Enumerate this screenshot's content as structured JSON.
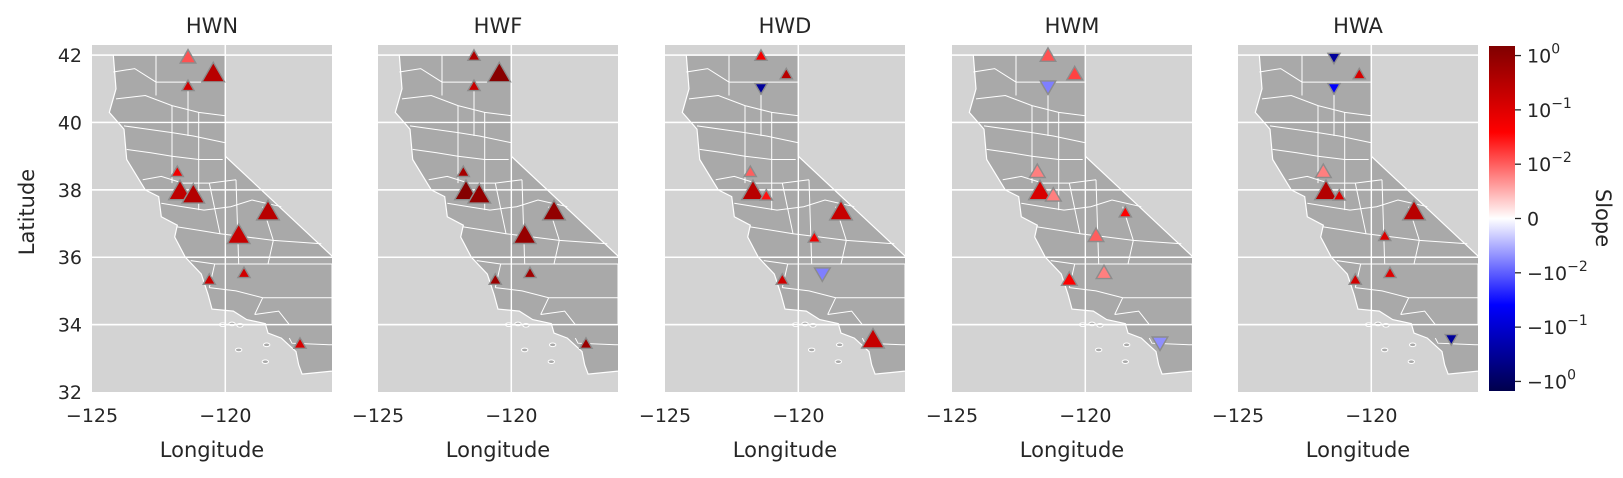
{
  "chart_data": {
    "type": "scatter",
    "subtype": "multi-panel map scatter of California stations",
    "x_axis": {
      "label": "Longitude",
      "range": [
        -125,
        -116.0
      ],
      "ticks": [
        -125,
        -120
      ],
      "tick_labels": [
        "−125",
        "−120"
      ]
    },
    "y_axis": {
      "label": "Latitude",
      "range": [
        32,
        42.3
      ],
      "ticks": [
        32,
        34,
        36,
        38,
        40,
        42
      ],
      "tick_labels": [
        "32",
        "34",
        "36",
        "38",
        "40",
        "42"
      ]
    },
    "grid": true,
    "background": "California county map (gray) on light gray axes",
    "marker_legend": "triangle-up = positive slope, triangle-down = negative slope; marker color = slope (symlog color scale)",
    "colorbar": {
      "label": "Slope",
      "scale": "symlog",
      "range": [
        -1.5,
        1.5
      ],
      "ticks": [
        {
          "value": 1,
          "label": "10",
          "exp": "0"
        },
        {
          "value": 0.1,
          "label": "10",
          "exp": "−1"
        },
        {
          "value": 0.01,
          "label": "10",
          "exp": "−2"
        },
        {
          "value": 0,
          "label": "0",
          "exp": ""
        },
        {
          "value": -0.01,
          "label": "−10",
          "exp": "−2"
        },
        {
          "value": -0.1,
          "label": "−10",
          "exp": "−1"
        },
        {
          "value": -1,
          "label": "−10",
          "exp": "0"
        }
      ],
      "colormap": "seismic"
    },
    "panels": [
      {
        "title": "HWN",
        "points": [
          {
            "lon": -121.4,
            "lat": 41.9,
            "slope": 0.012,
            "size": "md"
          },
          {
            "lon": -121.4,
            "lat": 41.05,
            "slope": 0.15,
            "size": "sm"
          },
          {
            "lon": -120.45,
            "lat": 41.4,
            "slope": 0.3,
            "size": "lg"
          },
          {
            "lon": -121.8,
            "lat": 38.5,
            "slope": 0.06,
            "size": "sm"
          },
          {
            "lon": -121.7,
            "lat": 37.9,
            "slope": 0.25,
            "size": "lg"
          },
          {
            "lon": -121.2,
            "lat": 37.8,
            "slope": 0.35,
            "size": "lg"
          },
          {
            "lon": -118.4,
            "lat": 37.3,
            "slope": 0.3,
            "size": "lg"
          },
          {
            "lon": -119.5,
            "lat": 36.6,
            "slope": 0.2,
            "size": "lg"
          },
          {
            "lon": -120.6,
            "lat": 35.3,
            "slope": 0.18,
            "size": "sm"
          },
          {
            "lon": -119.3,
            "lat": 35.5,
            "slope": 0.15,
            "size": "sm"
          },
          {
            "lon": -117.2,
            "lat": 33.4,
            "slope": 0.12,
            "size": "sm"
          }
        ]
      },
      {
        "title": "HWF",
        "points": [
          {
            "lon": -121.4,
            "lat": 41.95,
            "slope": 0.4,
            "size": "sm"
          },
          {
            "lon": -121.4,
            "lat": 41.05,
            "slope": 0.2,
            "size": "sm"
          },
          {
            "lon": -120.45,
            "lat": 41.4,
            "slope": 1.2,
            "size": "lg"
          },
          {
            "lon": -121.8,
            "lat": 38.5,
            "slope": 0.5,
            "size": "sm"
          },
          {
            "lon": -121.7,
            "lat": 37.9,
            "slope": 1.3,
            "size": "lg"
          },
          {
            "lon": -121.2,
            "lat": 37.8,
            "slope": 0.9,
            "size": "lg"
          },
          {
            "lon": -118.4,
            "lat": 37.3,
            "slope": 0.9,
            "size": "lg"
          },
          {
            "lon": -119.5,
            "lat": 36.6,
            "slope": 0.8,
            "size": "lg"
          },
          {
            "lon": -120.6,
            "lat": 35.3,
            "slope": 0.7,
            "size": "sm"
          },
          {
            "lon": -119.3,
            "lat": 35.5,
            "slope": 0.6,
            "size": "sm"
          },
          {
            "lon": -117.2,
            "lat": 33.4,
            "slope": 0.7,
            "size": "sm"
          }
        ]
      },
      {
        "title": "HWD",
        "points": [
          {
            "lon": -121.4,
            "lat": 41.95,
            "slope": 0.05,
            "size": "sm"
          },
          {
            "lon": -121.4,
            "lat": 41.05,
            "slope": -0.3,
            "size": "sm"
          },
          {
            "lon": -120.45,
            "lat": 41.4,
            "slope": 0.3,
            "size": "sm"
          },
          {
            "lon": -121.8,
            "lat": 38.5,
            "slope": 0.01,
            "size": "sm"
          },
          {
            "lon": -121.7,
            "lat": 37.9,
            "slope": 0.3,
            "size": "lg"
          },
          {
            "lon": -121.2,
            "lat": 37.8,
            "slope": 0.03,
            "size": "sm"
          },
          {
            "lon": -118.4,
            "lat": 37.3,
            "slope": 0.2,
            "size": "lg"
          },
          {
            "lon": -119.4,
            "lat": 36.55,
            "slope": 0.06,
            "size": "sm"
          },
          {
            "lon": -119.1,
            "lat": 35.55,
            "slope": -0.008,
            "size": "md"
          },
          {
            "lon": -120.6,
            "lat": 35.3,
            "slope": 0.15,
            "size": "sm"
          },
          {
            "lon": -117.2,
            "lat": 33.5,
            "slope": 0.2,
            "size": "lg"
          }
        ]
      },
      {
        "title": "HWM",
        "points": [
          {
            "lon": -121.4,
            "lat": 41.95,
            "slope": 0.012,
            "size": "md"
          },
          {
            "lon": -121.4,
            "lat": 41.1,
            "slope": -0.008,
            "size": "md"
          },
          {
            "lon": -120.4,
            "lat": 41.4,
            "slope": 0.015,
            "size": "md"
          },
          {
            "lon": -121.8,
            "lat": 38.5,
            "slope": 0.008,
            "size": "md"
          },
          {
            "lon": -121.7,
            "lat": 37.9,
            "slope": 0.12,
            "size": "lg"
          },
          {
            "lon": -121.2,
            "lat": 37.8,
            "slope": 0.008,
            "size": "md"
          },
          {
            "lon": -118.5,
            "lat": 37.3,
            "slope": 0.04,
            "size": "sm"
          },
          {
            "lon": -119.6,
            "lat": 36.6,
            "slope": 0.01,
            "size": "md"
          },
          {
            "lon": -120.6,
            "lat": 35.3,
            "slope": 0.04,
            "size": "md"
          },
          {
            "lon": -119.3,
            "lat": 35.5,
            "slope": 0.008,
            "size": "md"
          },
          {
            "lon": -117.2,
            "lat": 33.5,
            "slope": -0.007,
            "size": "md"
          }
        ]
      },
      {
        "title": "HWA",
        "points": [
          {
            "lon": -121.4,
            "lat": 41.95,
            "slope": -0.3,
            "size": "sm"
          },
          {
            "lon": -121.4,
            "lat": 41.05,
            "slope": -0.04,
            "size": "sm"
          },
          {
            "lon": -120.45,
            "lat": 41.4,
            "slope": 0.12,
            "size": "sm"
          },
          {
            "lon": -121.8,
            "lat": 38.5,
            "slope": 0.008,
            "size": "md"
          },
          {
            "lon": -121.7,
            "lat": 37.9,
            "slope": 0.35,
            "size": "lg"
          },
          {
            "lon": -121.2,
            "lat": 37.8,
            "slope": 0.12,
            "size": "sm"
          },
          {
            "lon": -118.4,
            "lat": 37.3,
            "slope": 0.3,
            "size": "lg"
          },
          {
            "lon": -119.5,
            "lat": 36.6,
            "slope": 0.12,
            "size": "sm"
          },
          {
            "lon": -120.6,
            "lat": 35.3,
            "slope": 0.15,
            "size": "sm"
          },
          {
            "lon": -119.3,
            "lat": 35.5,
            "slope": 0.1,
            "size": "sm"
          },
          {
            "lon": -117.0,
            "lat": 33.6,
            "slope": -0.3,
            "size": "sm"
          }
        ]
      }
    ]
  }
}
